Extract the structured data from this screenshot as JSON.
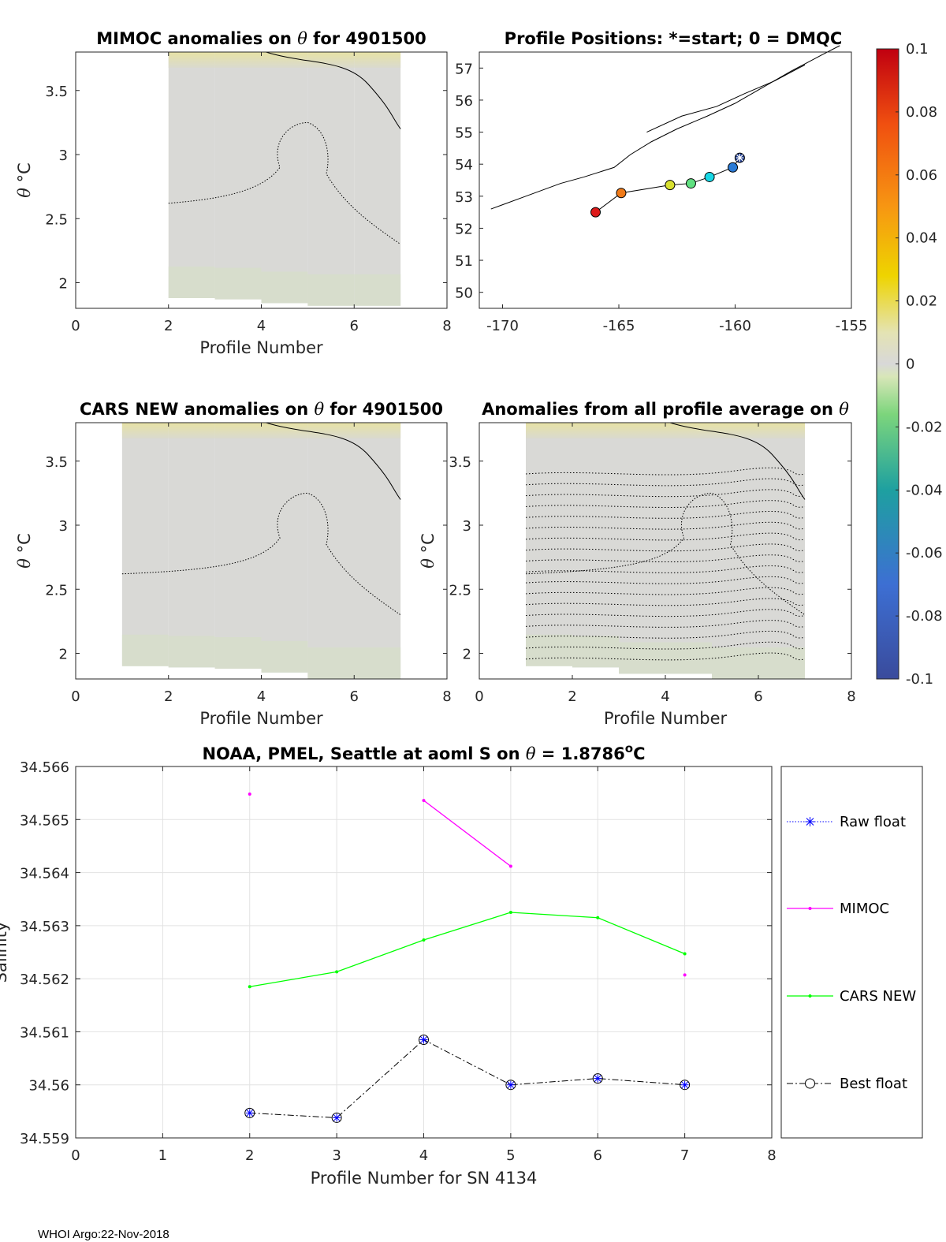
{
  "footer": "WHOI Argo:22-Nov-2018",
  "chart_data": [
    {
      "id": "mimoc",
      "type": "heatmap",
      "title_prefix": "MIMOC anomalies on ",
      "title_symbol": "θ",
      "title_suffix": "  for 4901500",
      "xlabel": "Profile Number",
      "ylabel_symbol": "θ",
      "ylabel_unit": "°C",
      "xlim": [
        0,
        8
      ],
      "ylim": [
        1.8,
        3.8
      ],
      "xticks": [
        0,
        2,
        4,
        6,
        8
      ],
      "yticks": [
        2,
        2.5,
        3,
        3.5
      ],
      "xtick_labels": [
        "0",
        "2",
        "4",
        "6",
        "8"
      ],
      "ytick_labels": [
        "2",
        "2.5",
        "3",
        "3.5"
      ],
      "columns": [
        {
          "x0": 2,
          "x1": 3,
          "ybottom": 1.88,
          "ytop": 3.8
        },
        {
          "x0": 3,
          "x1": 4,
          "ybottom": 1.87,
          "ytop": 3.8
        },
        {
          "x0": 4,
          "x1": 5,
          "ybottom": 1.84,
          "ytop": 3.8
        },
        {
          "x0": 5,
          "x1": 6,
          "ybottom": 1.82,
          "ytop": 3.8
        },
        {
          "x0": 6,
          "x1": 7,
          "ybottom": 1.82,
          "ytop": 3.8
        }
      ]
    },
    {
      "id": "positions",
      "type": "scatter",
      "title": "Profile Positions: *=start; 0 = DMQC",
      "xlim": [
        -171,
        -155
      ],
      "ylim": [
        49.5,
        57.5
      ],
      "xticks": [
        -170,
        -165,
        -160,
        -155
      ],
      "yticks": [
        50,
        51,
        52,
        53,
        54,
        55,
        56,
        57
      ],
      "xtick_labels": [
        "-170",
        "-165",
        "-160",
        "-155"
      ],
      "ytick_labels": [
        "50",
        "51",
        "52",
        "53",
        "54",
        "55",
        "56",
        "57"
      ],
      "track": [
        {
          "lon": -159.8,
          "lat": 54.2,
          "color": "#1f3b8c",
          "start": true
        },
        {
          "lon": -160.1,
          "lat": 53.9,
          "color": "#2b7bd6"
        },
        {
          "lon": -161.1,
          "lat": 53.6,
          "color": "#18d8e6"
        },
        {
          "lon": -161.9,
          "lat": 53.4,
          "color": "#60e080"
        },
        {
          "lon": -162.8,
          "lat": 53.35,
          "color": "#d8e030"
        },
        {
          "lon": -164.9,
          "lat": 53.1,
          "color": "#f07a18"
        },
        {
          "lon": -166.0,
          "lat": 52.5,
          "color": "#dd1a1a"
        }
      ]
    },
    {
      "id": "cars",
      "type": "heatmap",
      "title_prefix": "CARS NEW anomalies on ",
      "title_symbol": "θ",
      "title_suffix": " for 4901500",
      "xlabel": "Profile Number",
      "ylabel_symbol": "θ",
      "ylabel_unit": "°C",
      "xlim": [
        0,
        8
      ],
      "ylim": [
        1.8,
        3.8
      ],
      "xticks": [
        0,
        2,
        4,
        6,
        8
      ],
      "yticks": [
        2,
        2.5,
        3,
        3.5
      ],
      "xtick_labels": [
        "0",
        "2",
        "4",
        "6",
        "8"
      ],
      "ytick_labels": [
        "2",
        "2.5",
        "3",
        "3.5"
      ],
      "columns": [
        {
          "x0": 1,
          "x1": 2,
          "ybottom": 1.9,
          "ytop": 3.8
        },
        {
          "x0": 2,
          "x1": 3,
          "ybottom": 1.89,
          "ytop": 3.8
        },
        {
          "x0": 3,
          "x1": 4,
          "ybottom": 1.88,
          "ytop": 3.8
        },
        {
          "x0": 4,
          "x1": 5,
          "ybottom": 1.85,
          "ytop": 3.8
        },
        {
          "x0": 5,
          "x1": 7,
          "ybottom": 1.8,
          "ytop": 3.8
        }
      ]
    },
    {
      "id": "allavg",
      "type": "heatmap",
      "title_prefix": "Anomalies from all profile average on ",
      "title_symbol": "θ",
      "title_suffix": "",
      "xlabel": "Profile Number",
      "ylabel_symbol": "θ",
      "ylabel_unit": "°C",
      "xlim": [
        0,
        8
      ],
      "ylim": [
        1.8,
        3.8
      ],
      "xticks": [
        0,
        2,
        4,
        6,
        8
      ],
      "yticks": [
        2,
        2.5,
        3,
        3.5
      ],
      "xtick_labels": [
        "0",
        "2",
        "4",
        "6",
        "8"
      ],
      "ytick_labels": [
        "2",
        "2.5",
        "3",
        "3.5"
      ],
      "columns": [
        {
          "x0": 1,
          "x1": 2,
          "ybottom": 1.9,
          "ytop": 3.8
        },
        {
          "x0": 2,
          "x1": 3,
          "ybottom": 1.89,
          "ytop": 3.8
        },
        {
          "x0": 3,
          "x1": 5,
          "ybottom": 1.84,
          "ytop": 3.8
        },
        {
          "x0": 5,
          "x1": 7,
          "ybottom": 1.8,
          "ytop": 3.8
        }
      ]
    },
    {
      "id": "colorbar",
      "type": "colorbar",
      "lim": [
        -0.1,
        0.1
      ],
      "ticks": [
        0.1,
        0.08,
        0.06,
        0.04,
        0.02,
        0,
        -0.02,
        -0.04,
        -0.06,
        -0.08,
        -0.1
      ],
      "tick_labels": [
        "0.1",
        "0.08",
        "0.06",
        "0.04",
        "0.02",
        "0",
        "-0.02",
        "-0.04",
        "-0.06",
        "-0.08",
        "-0.1"
      ]
    },
    {
      "id": "salinity",
      "type": "line",
      "title_prefix": "NOAA, PMEL, Seattle at aoml S on ",
      "title_symbol": "θ",
      "title_value": " = 1.8786",
      "title_unit_sup": "o",
      "title_unit": "C",
      "xlabel": "Profile Number for SN 4134",
      "ylabel": "Salinity",
      "xlim": [
        0,
        8
      ],
      "ylim": [
        34.559,
        34.566
      ],
      "xticks": [
        0,
        1,
        2,
        3,
        4,
        5,
        6,
        7,
        8
      ],
      "xtick_labels": [
        "0",
        "1",
        "2",
        "3",
        "4",
        "5",
        "6",
        "7",
        "8"
      ],
      "yticks": [
        34.559,
        34.56,
        34.561,
        34.562,
        34.563,
        34.564,
        34.565,
        34.566
      ],
      "ytick_labels": [
        "34.559",
        "34.56",
        "34.561",
        "34.562",
        "34.563",
        "34.564",
        "34.565",
        "34.566"
      ],
      "series": [
        {
          "name": "Raw float",
          "color": "#0000ff",
          "x": [
            2,
            3,
            4,
            5,
            6,
            7
          ],
          "y": [
            34.55947,
            34.55938,
            34.56085,
            34.56,
            34.56012,
            34.56
          ]
        },
        {
          "name": "MIMOC",
          "color": "#ff00ff",
          "x": [
            2,
            4,
            5,
            7
          ],
          "y": [
            34.56548,
            34.56536,
            34.56412,
            34.56207
          ],
          "segments": [
            [
              2
            ],
            [
              4,
              5
            ],
            [
              7
            ]
          ]
        },
        {
          "name": "CARS NEW",
          "color": "#00ff00",
          "x": [
            2,
            3,
            4,
            5,
            6,
            7
          ],
          "y": [
            34.56185,
            34.56213,
            34.56273,
            34.56325,
            34.56315,
            34.56247
          ]
        },
        {
          "name": "Best float",
          "color": "#000000",
          "x": [
            2,
            3,
            4,
            5,
            6,
            7
          ],
          "y": [
            34.55947,
            34.55938,
            34.56085,
            34.56,
            34.56012,
            34.56
          ]
        }
      ],
      "legend": [
        "Raw float",
        "MIMOC",
        "CARS NEW",
        "Best float"
      ]
    }
  ]
}
